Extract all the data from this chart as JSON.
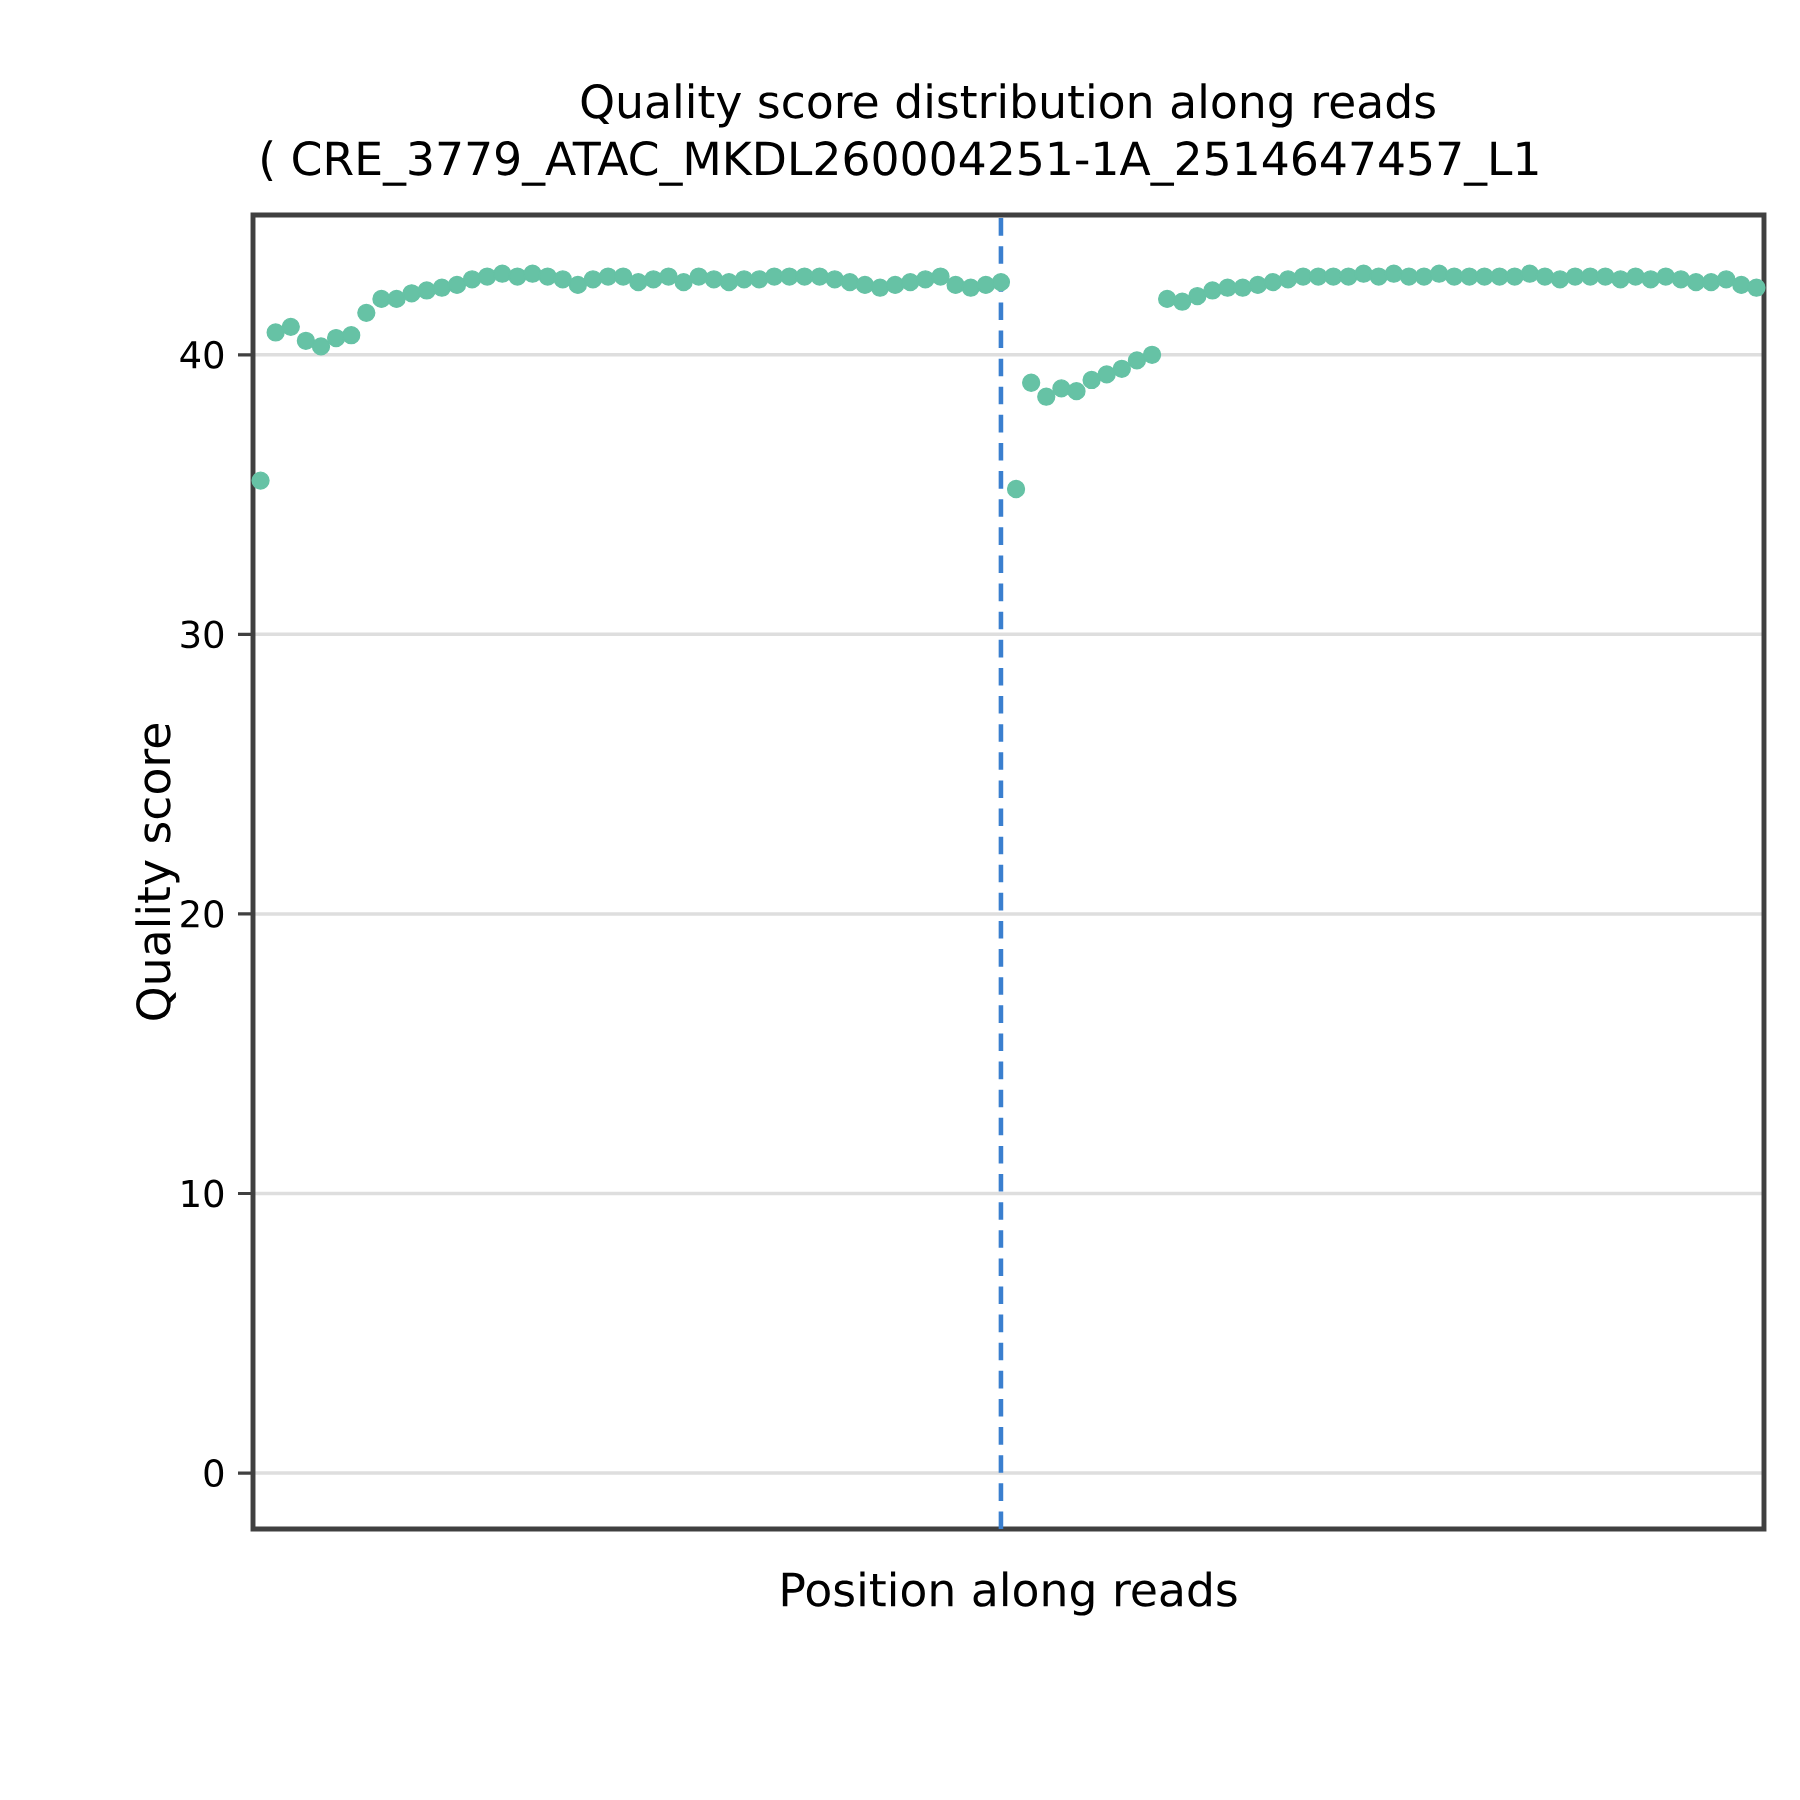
{
  "chart_data": {
    "type": "scatter",
    "title": "Quality score distribution along reads",
    "subtitle": "( CRE_3779_ATAC_MKDL260004251-1A_2514647457_L1",
    "xlabel": "Position along reads",
    "ylabel": "Quality score",
    "categories": [
      null,
      null,
      null,
      null,
      null,
      null,
      null,
      null,
      null,
      null,
      null,
      null,
      null,
      null,
      null,
      null,
      null,
      null,
      null,
      null,
      null,
      null,
      null,
      null,
      null,
      null,
      null,
      null,
      null,
      null,
      null,
      null,
      null,
      null,
      null,
      null,
      null,
      null,
      null,
      null,
      null,
      null,
      null,
      null,
      null,
      null,
      null,
      null,
      null,
      null,
      null,
      null,
      null,
      null,
      null,
      null,
      null,
      null,
      null,
      null,
      null,
      null,
      null,
      null,
      null,
      null,
      null,
      null,
      null,
      null,
      null,
      null,
      null,
      null,
      null,
      null,
      null,
      null,
      null,
      null,
      null,
      null,
      null,
      null,
      null,
      null,
      null,
      null,
      null,
      null,
      null,
      null,
      null,
      null,
      null,
      null,
      null,
      null,
      null,
      null
    ],
    "values": [
      35.5,
      40.8,
      41.0,
      40.5,
      40.3,
      40.6,
      40.7,
      41.5,
      42.0,
      42.0,
      42.2,
      42.3,
      42.4,
      42.5,
      42.7,
      42.8,
      42.9,
      42.8,
      42.9,
      42.8,
      42.7,
      42.5,
      42.7,
      42.8,
      42.8,
      42.6,
      42.7,
      42.8,
      42.6,
      42.8,
      42.7,
      42.6,
      42.7,
      42.7,
      42.8,
      42.8,
      42.8,
      42.8,
      42.7,
      42.6,
      42.5,
      42.4,
      42.5,
      42.6,
      42.7,
      42.8,
      42.5,
      42.4,
      42.5,
      42.6,
      35.2,
      39.0,
      38.5,
      38.8,
      38.7,
      39.1,
      39.3,
      39.5,
      39.8,
      40.0,
      42.0,
      41.9,
      42.1,
      42.3,
      42.4,
      42.4,
      42.5,
      42.6,
      42.7,
      42.8,
      42.8,
      42.8,
      42.8,
      42.9,
      42.8,
      42.9,
      42.8,
      42.8,
      42.9,
      42.8,
      42.8,
      42.8,
      42.8,
      42.8,
      42.9,
      42.8,
      42.7,
      42.8,
      42.8,
      42.8,
      42.7,
      42.8,
      42.7,
      42.8,
      42.7,
      42.6,
      42.6,
      42.7,
      42.5,
      42.4
    ],
    "color": "#66c2a5",
    "ylim": [
      -2,
      45
    ],
    "yticks": [
      0,
      10,
      20,
      30,
      40
    ],
    "grid": "y",
    "tick_labels": "y"
  }
}
